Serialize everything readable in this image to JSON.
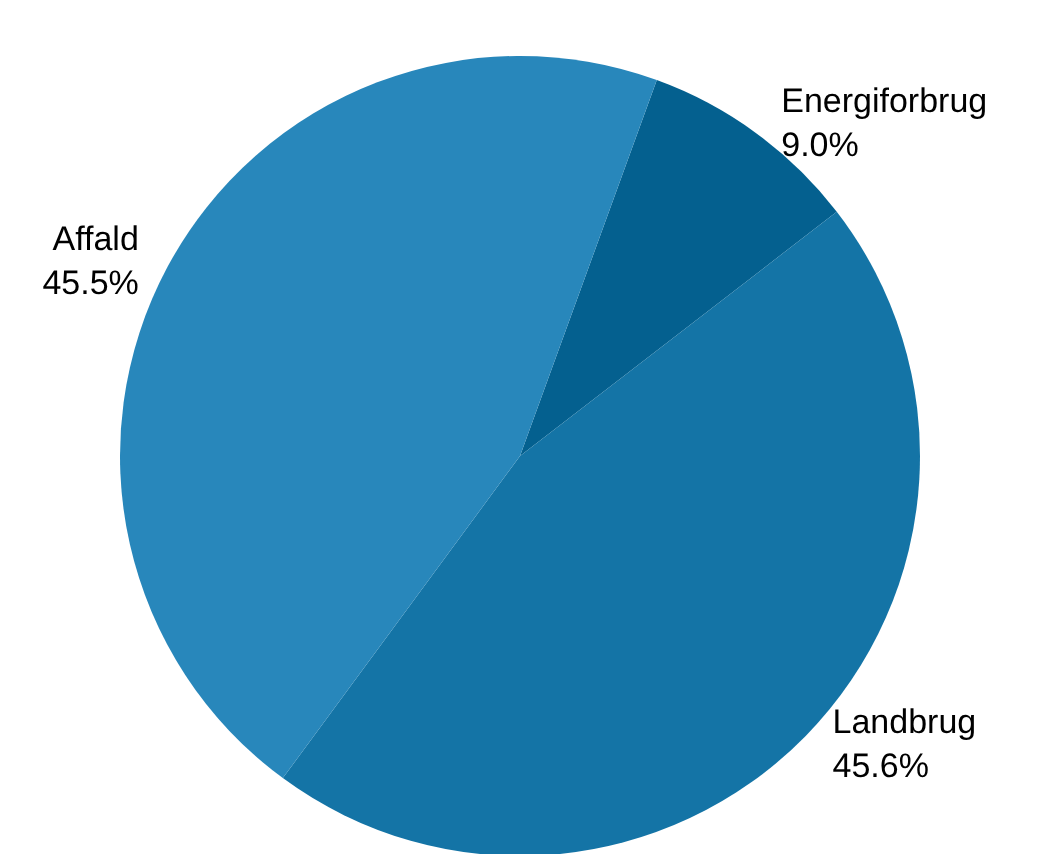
{
  "chart_data": {
    "type": "pie",
    "categories": [
      "Energiforbrug",
      "Landbrug",
      "Affald"
    ],
    "values": [
      9.0,
      45.6,
      45.5
    ],
    "colors": [
      "#04608f",
      "#1474a6",
      "#2887bb"
    ],
    "value_labels": [
      "9.0%",
      "45.6%",
      "45.5%"
    ],
    "legend": false
  }
}
